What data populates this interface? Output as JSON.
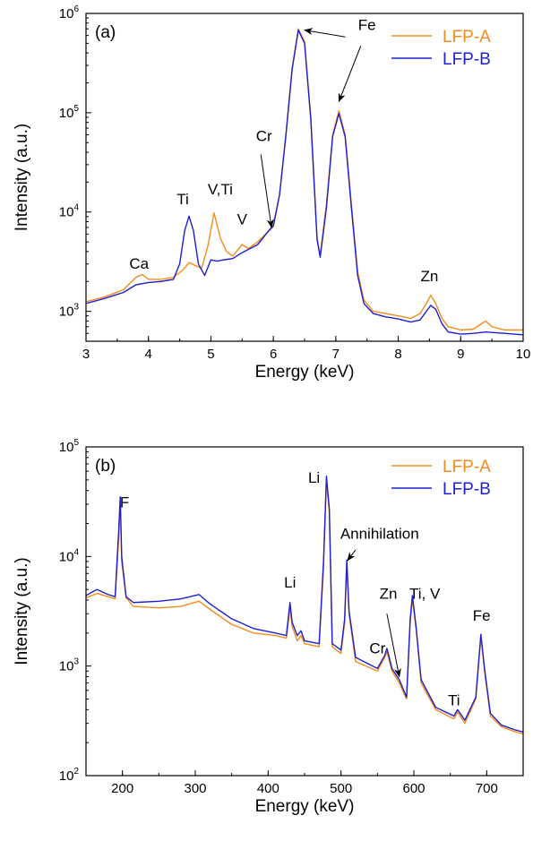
{
  "chart_data": [
    {
      "type": "line",
      "panel_label": "(a)",
      "xlabel": "Energy (keV)",
      "ylabel": "Intensity (a.u.)",
      "xlim": [
        3,
        10
      ],
      "ylim": [
        500,
        1000000
      ],
      "yscale": "log",
      "x_ticks": [
        "3",
        "4",
        "5",
        "6",
        "7",
        "8",
        "9",
        "10"
      ],
      "y_ticks": [
        {
          "base": "10",
          "exp": "3",
          "value": 1000
        },
        {
          "base": "10",
          "exp": "4",
          "value": 10000
        },
        {
          "base": "10",
          "exp": "5",
          "value": 100000
        },
        {
          "base": "10",
          "exp": "6",
          "value": 1000000
        }
      ],
      "legend_position": "top-right",
      "series": [
        {
          "name": "LFP-A",
          "color": "#f28c1e",
          "points": [
            [
              3.0,
              1250
            ],
            [
              3.3,
              1400
            ],
            [
              3.6,
              1650
            ],
            [
              3.8,
              2200
            ],
            [
              3.9,
              2350
            ],
            [
              4.0,
              2100
            ],
            [
              4.2,
              2100
            ],
            [
              4.4,
              2200
            ],
            [
              4.55,
              2600
            ],
            [
              4.65,
              3100
            ],
            [
              4.75,
              2900
            ],
            [
              4.85,
              2700
            ],
            [
              4.95,
              4500
            ],
            [
              5.05,
              9800
            ],
            [
              5.15,
              5500
            ],
            [
              5.25,
              4000
            ],
            [
              5.35,
              3600
            ],
            [
              5.5,
              4700
            ],
            [
              5.6,
              4300
            ],
            [
              5.75,
              5000
            ],
            [
              5.9,
              6200
            ],
            [
              6.0,
              7500
            ],
            [
              6.1,
              15000
            ],
            [
              6.2,
              60000
            ],
            [
              6.3,
              280000
            ],
            [
              6.4,
              700000
            ],
            [
              6.5,
              520000
            ],
            [
              6.6,
              90000
            ],
            [
              6.7,
              5500
            ],
            [
              6.75,
              3700
            ],
            [
              6.85,
              12000
            ],
            [
              6.95,
              60000
            ],
            [
              7.05,
              105000
            ],
            [
              7.15,
              60000
            ],
            [
              7.25,
              12000
            ],
            [
              7.35,
              2500
            ],
            [
              7.45,
              1300
            ],
            [
              7.6,
              1000
            ],
            [
              7.8,
              950
            ],
            [
              8.0,
              900
            ],
            [
              8.2,
              850
            ],
            [
              8.35,
              950
            ],
            [
              8.45,
              1200
            ],
            [
              8.52,
              1450
            ],
            [
              8.6,
              1200
            ],
            [
              8.7,
              850
            ],
            [
              8.8,
              700
            ],
            [
              9.0,
              650
            ],
            [
              9.2,
              660
            ],
            [
              9.4,
              800
            ],
            [
              9.5,
              700
            ],
            [
              9.7,
              650
            ],
            [
              10.0,
              650
            ]
          ]
        },
        {
          "name": "LFP-B",
          "color": "#1f1fd0",
          "points": [
            [
              3.0,
              1200
            ],
            [
              3.3,
              1350
            ],
            [
              3.6,
              1550
            ],
            [
              3.8,
              1850
            ],
            [
              4.0,
              1950
            ],
            [
              4.2,
              2000
            ],
            [
              4.4,
              2100
            ],
            [
              4.5,
              3000
            ],
            [
              4.58,
              6500
            ],
            [
              4.65,
              9100
            ],
            [
              4.72,
              6500
            ],
            [
              4.8,
              3000
            ],
            [
              4.9,
              2300
            ],
            [
              5.0,
              3300
            ],
            [
              5.1,
              3200
            ],
            [
              5.2,
              3300
            ],
            [
              5.35,
              3400
            ],
            [
              5.5,
              3900
            ],
            [
              5.75,
              4700
            ],
            [
              5.9,
              6200
            ],
            [
              6.0,
              7200
            ],
            [
              6.1,
              15000
            ],
            [
              6.2,
              58000
            ],
            [
              6.3,
              270000
            ],
            [
              6.4,
              680000
            ],
            [
              6.5,
              500000
            ],
            [
              6.6,
              85000
            ],
            [
              6.7,
              5300
            ],
            [
              6.75,
              3500
            ],
            [
              6.85,
              11000
            ],
            [
              6.95,
              58000
            ],
            [
              7.05,
              98000
            ],
            [
              7.15,
              57000
            ],
            [
              7.25,
              11000
            ],
            [
              7.35,
              2300
            ],
            [
              7.45,
              1200
            ],
            [
              7.6,
              950
            ],
            [
              7.8,
              880
            ],
            [
              8.0,
              840
            ],
            [
              8.2,
              780
            ],
            [
              8.35,
              820
            ],
            [
              8.45,
              1000
            ],
            [
              8.52,
              1150
            ],
            [
              8.6,
              1050
            ],
            [
              8.7,
              750
            ],
            [
              8.8,
              620
            ],
            [
              9.0,
              590
            ],
            [
              9.2,
              600
            ],
            [
              9.4,
              620
            ],
            [
              9.7,
              600
            ],
            [
              10.0,
              580
            ]
          ]
        }
      ],
      "annotations": [
        {
          "text": "Ca",
          "x": 3.85,
          "y": 2700
        },
        {
          "text": "Ti",
          "x": 4.55,
          "y": 12000
        },
        {
          "text": "V,Ti",
          "x": 5.15,
          "y": 15000
        },
        {
          "text": "V",
          "x": 5.5,
          "y": 7500
        },
        {
          "text": "Cr",
          "x": 5.85,
          "y": 52000
        },
        {
          "text": "Fe",
          "x": 7.5,
          "y": 680000
        },
        {
          "text": "Zn",
          "x": 8.5,
          "y": 2000
        }
      ],
      "arrows": [
        {
          "from": [
            5.8,
            38000
          ],
          "to": [
            5.97,
            7000
          ]
        },
        {
          "from": [
            7.15,
            580000
          ],
          "to": [
            6.5,
            680000
          ]
        },
        {
          "from": [
            7.4,
            470000
          ],
          "to": [
            7.05,
            130000
          ]
        }
      ]
    },
    {
      "type": "line",
      "panel_label": "(b)",
      "xlabel": "Energy (keV)",
      "ylabel": "Intensity (a.u.)",
      "xlim": [
        150,
        750
      ],
      "ylim": [
        100,
        100000
      ],
      "yscale": "log",
      "x_ticks": [
        "200",
        "300",
        "400",
        "500",
        "600",
        "700"
      ],
      "y_ticks": [
        {
          "base": "10",
          "exp": "2",
          "value": 100
        },
        {
          "base": "10",
          "exp": "3",
          "value": 1000
        },
        {
          "base": "10",
          "exp": "4",
          "value": 10000
        },
        {
          "base": "10",
          "exp": "5",
          "value": 100000
        }
      ],
      "legend_position": "top-right",
      "series": [
        {
          "name": "LFP-A",
          "color": "#f28c1e",
          "points": [
            [
              150,
              4200
            ],
            [
              165,
              4600
            ],
            [
              180,
              4300
            ],
            [
              190,
              4100
            ],
            [
              195,
              15000
            ],
            [
              197,
              31000
            ],
            [
              199,
              9000
            ],
            [
              205,
              4200
            ],
            [
              215,
              3500
            ],
            [
              250,
              3400
            ],
            [
              280,
              3500
            ],
            [
              305,
              3900
            ],
            [
              320,
              3300
            ],
            [
              350,
              2400
            ],
            [
              380,
              2000
            ],
            [
              410,
              1900
            ],
            [
              425,
              1800
            ],
            [
              430,
              3400
            ],
            [
              433,
              2300
            ],
            [
              440,
              1700
            ],
            [
              445,
              1900
            ],
            [
              450,
              1600
            ],
            [
              470,
              1500
            ],
            [
              476,
              8000
            ],
            [
              480,
              50000
            ],
            [
              484,
              25000
            ],
            [
              488,
              1500
            ],
            [
              500,
              1300
            ],
            [
              505,
              2500
            ],
            [
              508,
              8500
            ],
            [
              511,
              3000
            ],
            [
              520,
              1100
            ],
            [
              550,
              900
            ],
            [
              560,
              1200
            ],
            [
              563,
              1350
            ],
            [
              570,
              900
            ],
            [
              580,
              700
            ],
            [
              590,
              500
            ],
            [
              595,
              2500
            ],
            [
              598,
              4100
            ],
            [
              603,
              2200
            ],
            [
              610,
              700
            ],
            [
              630,
              400
            ],
            [
              655,
              330
            ],
            [
              660,
              380
            ],
            [
              670,
              300
            ],
            [
              685,
              500
            ],
            [
              692,
              1850
            ],
            [
              697,
              900
            ],
            [
              705,
              350
            ],
            [
              720,
              280
            ],
            [
              740,
              250
            ],
            [
              750,
              240
            ]
          ]
        },
        {
          "name": "LFP-B",
          "color": "#1f1fd0",
          "points": [
            [
              150,
              4400
            ],
            [
              165,
              5000
            ],
            [
              180,
              4500
            ],
            [
              190,
              4300
            ],
            [
              195,
              18000
            ],
            [
              197,
              35000
            ],
            [
              199,
              10000
            ],
            [
              205,
              4300
            ],
            [
              215,
              3800
            ],
            [
              250,
              3900
            ],
            [
              280,
              4100
            ],
            [
              305,
              4500
            ],
            [
              320,
              3700
            ],
            [
              350,
              2700
            ],
            [
              380,
              2200
            ],
            [
              410,
              2000
            ],
            [
              425,
              1900
            ],
            [
              430,
              3800
            ],
            [
              433,
              2500
            ],
            [
              440,
              1900
            ],
            [
              445,
              2100
            ],
            [
              450,
              1700
            ],
            [
              470,
              1600
            ],
            [
              476,
              9000
            ],
            [
              480,
              54000
            ],
            [
              484,
              27000
            ],
            [
              488,
              1600
            ],
            [
              500,
              1400
            ],
            [
              505,
              2700
            ],
            [
              508,
              9300
            ],
            [
              511,
              3200
            ],
            [
              520,
              1200
            ],
            [
              550,
              950
            ],
            [
              560,
              1250
            ],
            [
              563,
              1450
            ],
            [
              570,
              950
            ],
            [
              580,
              750
            ],
            [
              590,
              520
            ],
            [
              595,
              2700
            ],
            [
              598,
              4400
            ],
            [
              603,
              2300
            ],
            [
              610,
              750
            ],
            [
              630,
              420
            ],
            [
              655,
              350
            ],
            [
              660,
              400
            ],
            [
              670,
              320
            ],
            [
              685,
              520
            ],
            [
              692,
              1950
            ],
            [
              697,
              950
            ],
            [
              705,
              370
            ],
            [
              720,
              290
            ],
            [
              740,
              260
            ],
            [
              750,
              250
            ]
          ]
        }
      ],
      "annotations": [
        {
          "text": "F",
          "x": 203,
          "y": 28000
        },
        {
          "text": "Li",
          "x": 430,
          "y": 5200
        },
        {
          "text": "Li",
          "x": 463,
          "y": 47000
        },
        {
          "text": "Annihilation",
          "x": 553,
          "y": 14500
        },
        {
          "text": "Zn",
          "x": 565,
          "y": 4100
        },
        {
          "text": "Ti, V",
          "x": 615,
          "y": 4100
        },
        {
          "text": "Cr",
          "x": 550,
          "y": 1300
        },
        {
          "text": "Ti",
          "x": 655,
          "y": 440
        },
        {
          "text": "Fe",
          "x": 693,
          "y": 2600
        }
      ],
      "arrows": [
        {
          "from": [
            520,
            11500
          ],
          "to": [
            509,
            9200
          ]
        },
        {
          "from": [
            563,
            3000
          ],
          "to": [
            580,
            800
          ]
        }
      ]
    }
  ]
}
